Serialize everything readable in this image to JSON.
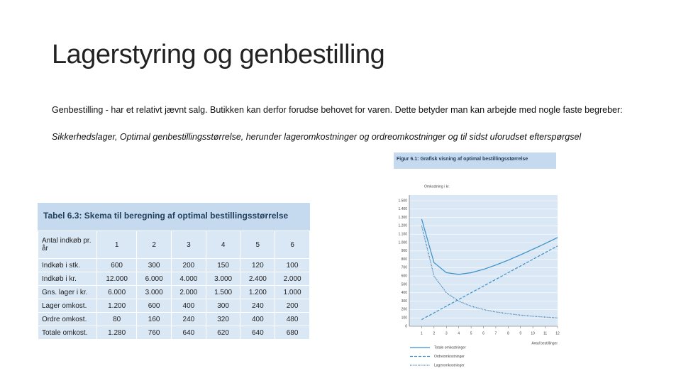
{
  "title": "Lagerstyring og genbestilling",
  "paragraphs": [
    "Genbestilling - har et relativt jævnt salg. Butikken kan derfor forudse behovet for varen. Dette betyder man kan arbejde med nogle faste begreber:",
    "Sikkerhedslager, Optimal genbestillingsstørrelse, herunder lageromkostninger og ordreomkostninger og til sidst uforudset efterspørgsel"
  ],
  "table": {
    "caption": "Tabel 6.3: Skema til beregning af optimal bestillingsstørrelse",
    "header": [
      "Antal indkøb pr. år",
      "1",
      "2",
      "3",
      "4",
      "5",
      "6"
    ],
    "rows": [
      [
        "Indkøb i stk.",
        "600",
        "300",
        "200",
        "150",
        "120",
        "100"
      ],
      [
        "Indkøb i kr.",
        "12.000",
        "6.000",
        "4.000",
        "3.000",
        "2.400",
        "2.000"
      ],
      [
        "Gns. lager i kr.",
        "6.000",
        "3.000",
        "2.000",
        "1.500",
        "1.200",
        "1.000"
      ],
      [
        "Lager omkost.",
        "1.200",
        "600",
        "400",
        "300",
        "240",
        "200"
      ],
      [
        "Ordre omkost.",
        "80",
        "160",
        "240",
        "320",
        "400",
        "480"
      ],
      [
        "Totale omkost.",
        "1.280",
        "760",
        "640",
        "620",
        "640",
        "680"
      ]
    ]
  },
  "figure": {
    "caption": "Figur 6.1: Grafisk visning af optimal bestillingsstørrelse",
    "chart_data": {
      "type": "line",
      "y_label": "Omkostning i kr.",
      "x_label": "Antal bestillinger",
      "x": [
        1,
        2,
        3,
        4,
        5,
        6,
        7,
        8,
        9,
        10,
        11,
        12
      ],
      "xlim": [
        0,
        12
      ],
      "xticks": [
        1,
        2,
        3,
        4,
        5,
        6,
        7,
        8,
        9,
        10,
        11,
        12
      ],
      "ylim": [
        0,
        1500
      ],
      "yticks": [
        0,
        100,
        200,
        300,
        400,
        500,
        600,
        700,
        800,
        900,
        {
          "value": 1000,
          "label": "1.000"
        },
        {
          "value": 1100,
          "label": "1.100"
        },
        {
          "value": 1200,
          "label": "1.200"
        },
        {
          "value": 1300,
          "label": "1.300"
        },
        {
          "value": 1400,
          "label": "1.400"
        },
        {
          "value": 1500,
          "label": "1.500"
        }
      ],
      "grid": true,
      "series": [
        {
          "name": "Totale omkostninger",
          "color": "#3a8fc8",
          "style": "solid",
          "values": [
            1280,
            760,
            640,
            620,
            640,
            680,
            731,
            790,
            853,
            920,
            989,
            1060
          ]
        },
        {
          "name": "Ordreomkostninger",
          "color": "#3a8fc8",
          "style": "dashed",
          "values": [
            80,
            160,
            240,
            320,
            400,
            480,
            560,
            640,
            720,
            800,
            880,
            960
          ]
        },
        {
          "name": "Lageromkostninger",
          "color": "#2a6fa8",
          "style": "dotted",
          "values": [
            1200,
            600,
            400,
            300,
            240,
            200,
            171,
            150,
            133,
            120,
            109,
            100
          ]
        }
      ]
    }
  }
}
